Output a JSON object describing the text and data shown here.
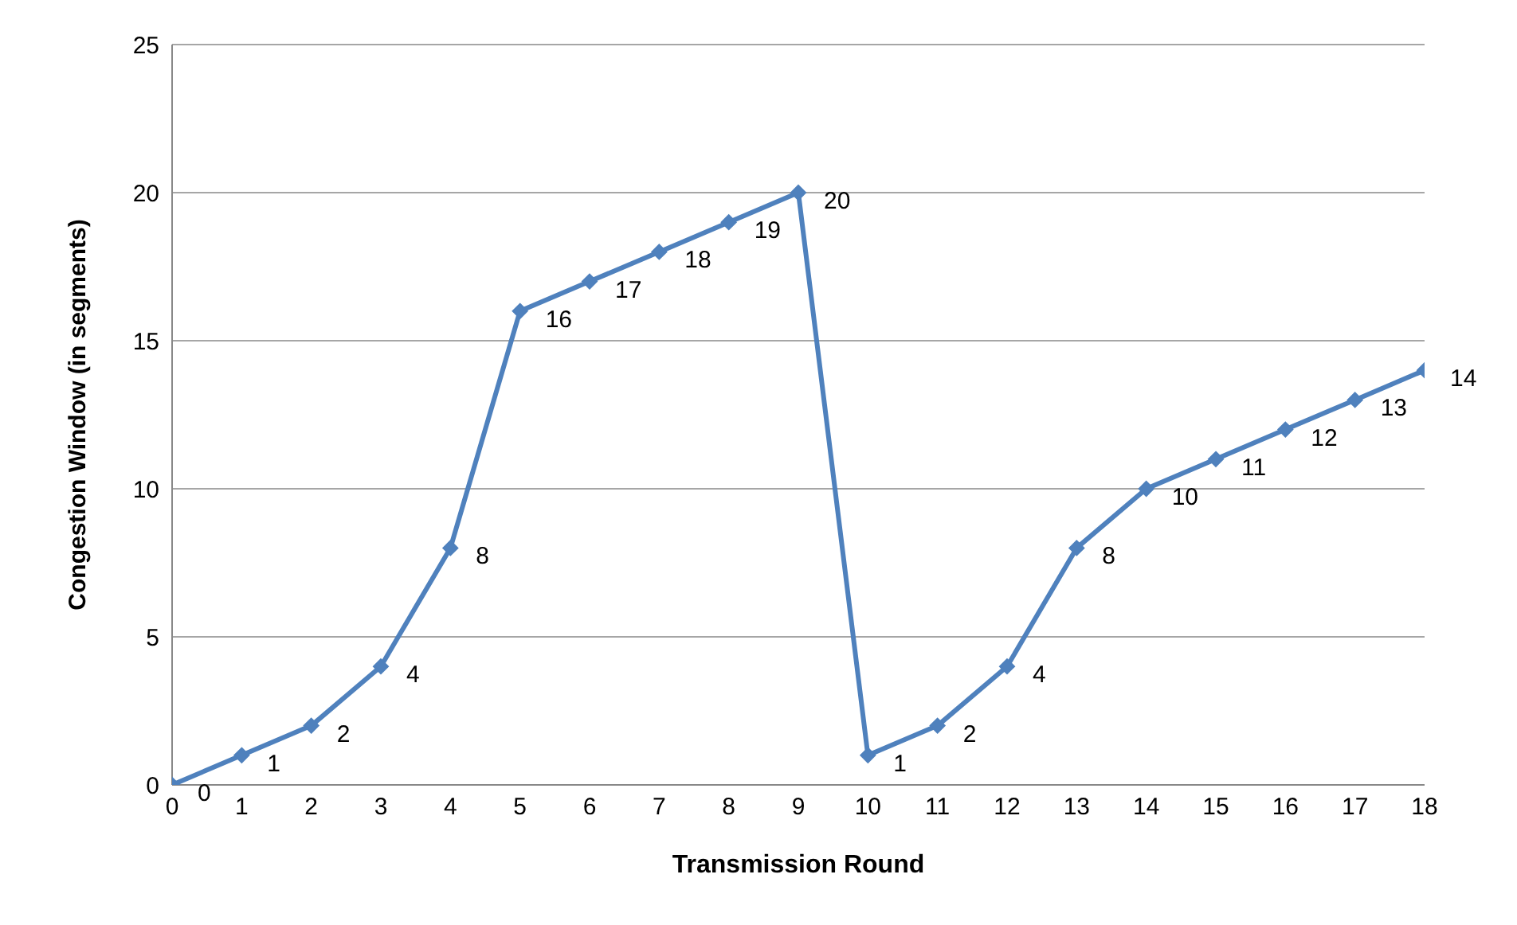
{
  "chart_data": {
    "type": "line",
    "xlabel": "Transmission Round",
    "ylabel": "Congestion Window (in segments)",
    "x": [
      0,
      1,
      2,
      3,
      4,
      5,
      6,
      7,
      8,
      9,
      10,
      11,
      12,
      13,
      14,
      15,
      16,
      17,
      18
    ],
    "series": [
      {
        "color": "#4f81bd",
        "values": [
          0,
          1,
          2,
          4,
          8,
          16,
          17,
          18,
          19,
          20,
          1,
          2,
          4,
          8,
          10,
          11,
          12,
          13,
          14
        ]
      }
    ],
    "xlim": [
      0,
      18
    ],
    "xticks": [
      0,
      1,
      2,
      3,
      4,
      5,
      6,
      7,
      8,
      9,
      10,
      11,
      12,
      13,
      14,
      15,
      16,
      17,
      18
    ],
    "ylim": [
      0,
      25
    ],
    "yticks": [
      0,
      5,
      10,
      15,
      20,
      25
    ],
    "grid": "y",
    "marker": "diamond",
    "line_style": "solid",
    "data_labels": true
  }
}
